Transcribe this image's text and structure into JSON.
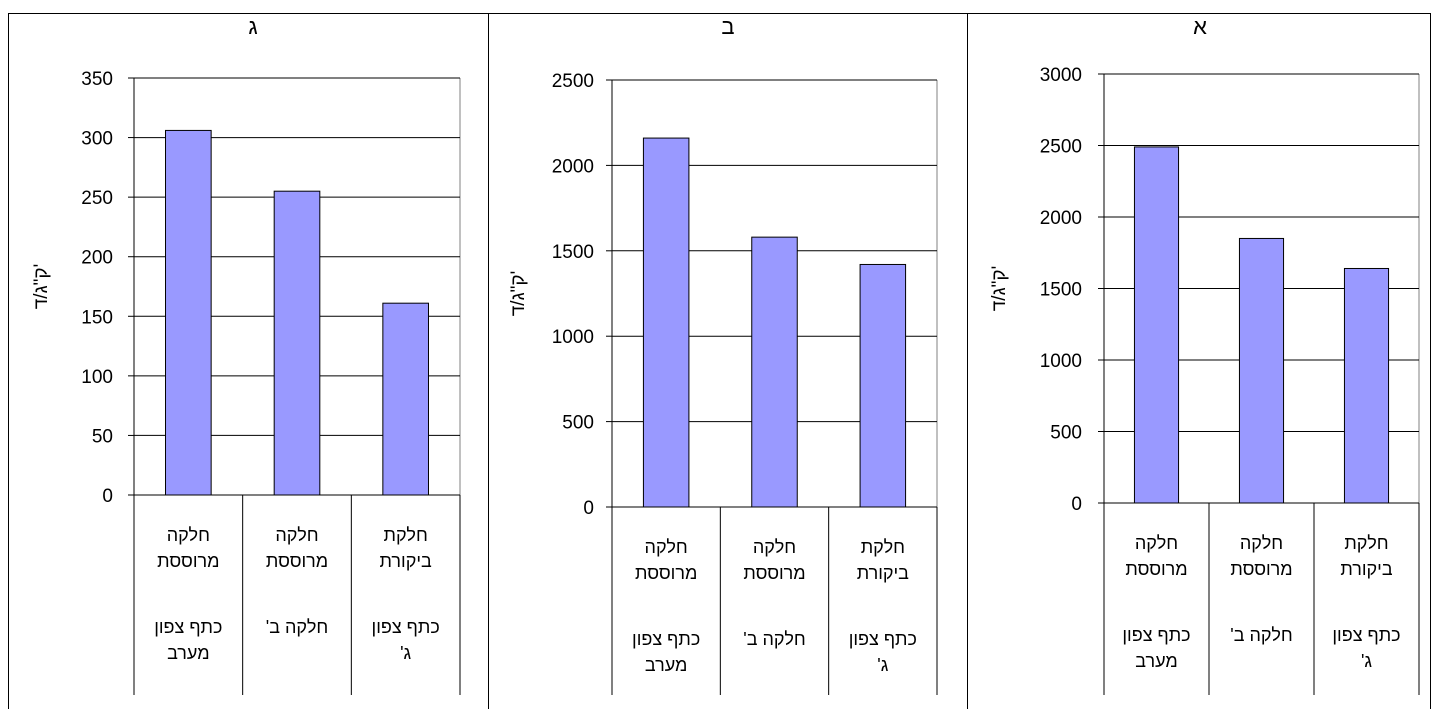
{
  "colors": {
    "bar": "#9999FF",
    "bar_stroke": "#000000",
    "grid": "#000000"
  },
  "chart_data": [
    {
      "type": "bar",
      "title": "ג",
      "ylabel": "ק\"ג/ד'",
      "ylim": [
        0,
        350
      ],
      "yticks": [
        0,
        50,
        100,
        150,
        200,
        250,
        300,
        350
      ],
      "grid": true,
      "categories": [
        {
          "line1": "חלקה",
          "line2": "מרוססת",
          "sub1": "כתף צפון",
          "sub2": "מערב"
        },
        {
          "line1": "חלקה",
          "line2": "מרוססת",
          "sub1": "חלקה ב'",
          "sub2": ""
        },
        {
          "line1": "חלקת",
          "line2": "ביקורת",
          "sub1": "כתף צפון",
          "sub2": "ג'"
        }
      ],
      "values": [
        306,
        255,
        161
      ]
    },
    {
      "type": "bar",
      "title": "ב",
      "ylabel": "ק\"ג/ד'",
      "ylim": [
        0,
        2500
      ],
      "yticks": [
        0,
        500,
        1000,
        1500,
        2000,
        2500
      ],
      "grid": true,
      "categories": [
        {
          "line1": "חלקה",
          "line2": "מרוססת",
          "sub1": "כתף צפון",
          "sub2": "מערב"
        },
        {
          "line1": "חלקה",
          "line2": "מרוססת",
          "sub1": "חלקה ב'",
          "sub2": ""
        },
        {
          "line1": "חלקת",
          "line2": "ביקורת",
          "sub1": "כתף צפון",
          "sub2": "ג'"
        }
      ],
      "values": [
        2160,
        1580,
        1420
      ]
    },
    {
      "type": "bar",
      "title": "א",
      "ylabel": "ק\"ג/ד'",
      "ylim": [
        0,
        3000
      ],
      "yticks": [
        0,
        500,
        1000,
        1500,
        2000,
        2500,
        3000
      ],
      "grid": true,
      "categories": [
        {
          "line1": "חלקה",
          "line2": "מרוססת",
          "sub1": "כתף צפון",
          "sub2": "מערב"
        },
        {
          "line1": "חלקה",
          "line2": "מרוססת",
          "sub1": "חלקה ב'",
          "sub2": ""
        },
        {
          "line1": "חלקת",
          "line2": "ביקורת",
          "sub1": "כתף צפון",
          "sub2": "ג'"
        }
      ],
      "values": [
        2490,
        1850,
        1640
      ]
    }
  ]
}
